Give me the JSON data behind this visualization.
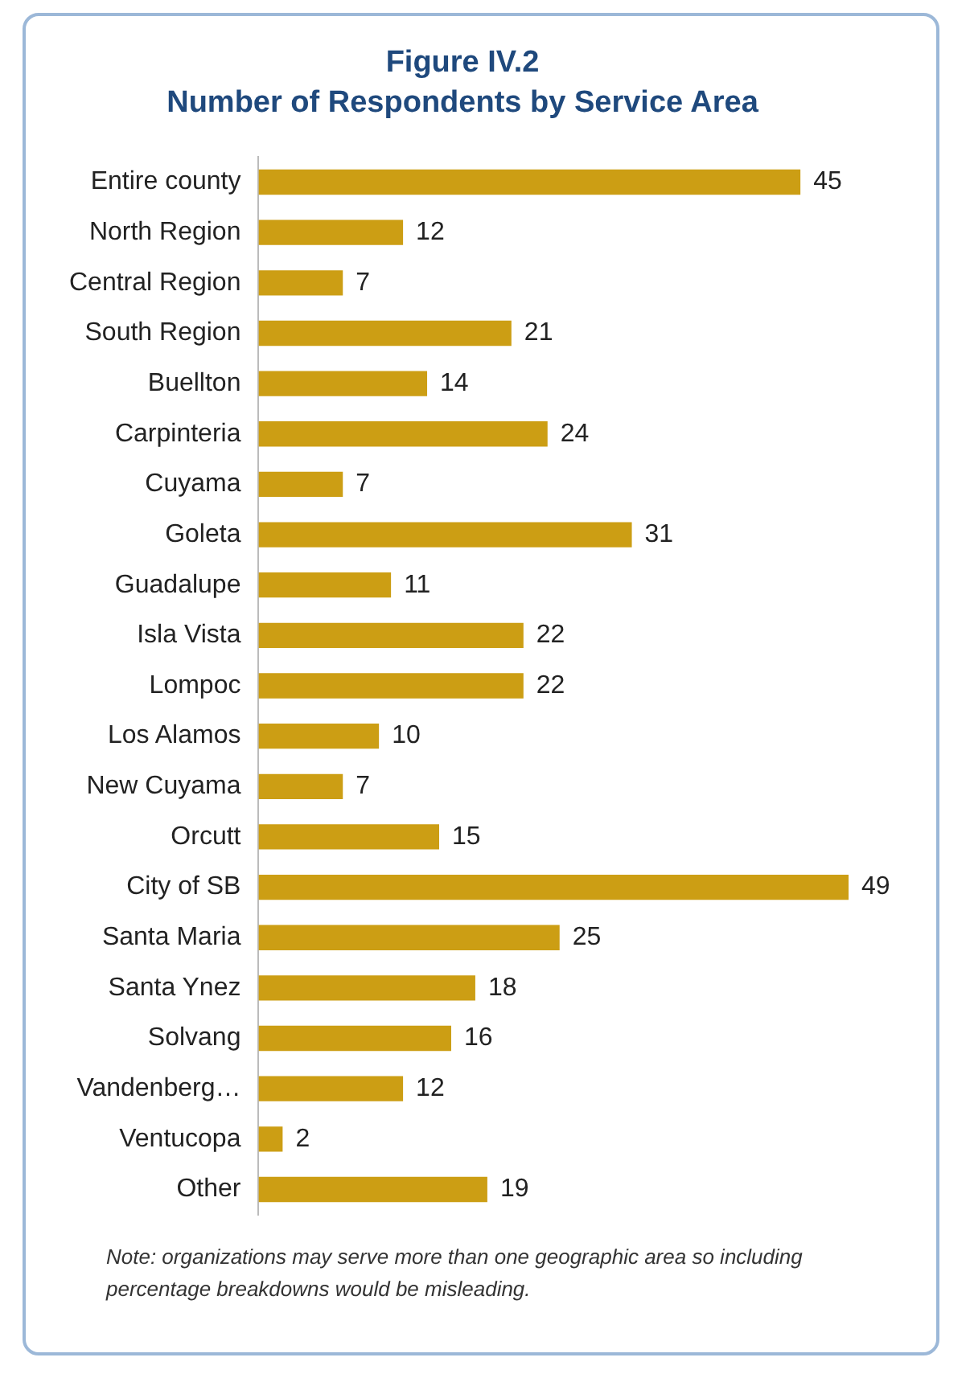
{
  "chart_data": {
    "type": "bar",
    "orientation": "horizontal",
    "title": "Figure IV.2",
    "subtitle": "Number of Respondents by Service Area",
    "categories": [
      "Entire county",
      "North Region",
      "Central Region",
      "South Region",
      "Buellton",
      "Carpinteria",
      "Cuyama",
      "Goleta",
      "Guadalupe",
      "Isla Vista",
      "Lompoc",
      "Los Alamos",
      "New Cuyama",
      "Orcutt",
      "City of SB",
      "Santa Maria",
      "Santa Ynez",
      "Solvang",
      "Vandenberg…",
      "Ventucopa",
      "Other"
    ],
    "values": [
      45,
      12,
      7,
      21,
      14,
      24,
      7,
      31,
      11,
      22,
      22,
      10,
      7,
      15,
      49,
      25,
      18,
      16,
      12,
      2,
      19
    ],
    "color": "#cc9e14",
    "data_labels": true,
    "legend": false,
    "annotations": [
      "Note: organizations may serve more than one geographic area so including percentage breakdowns would be misleading."
    ]
  }
}
